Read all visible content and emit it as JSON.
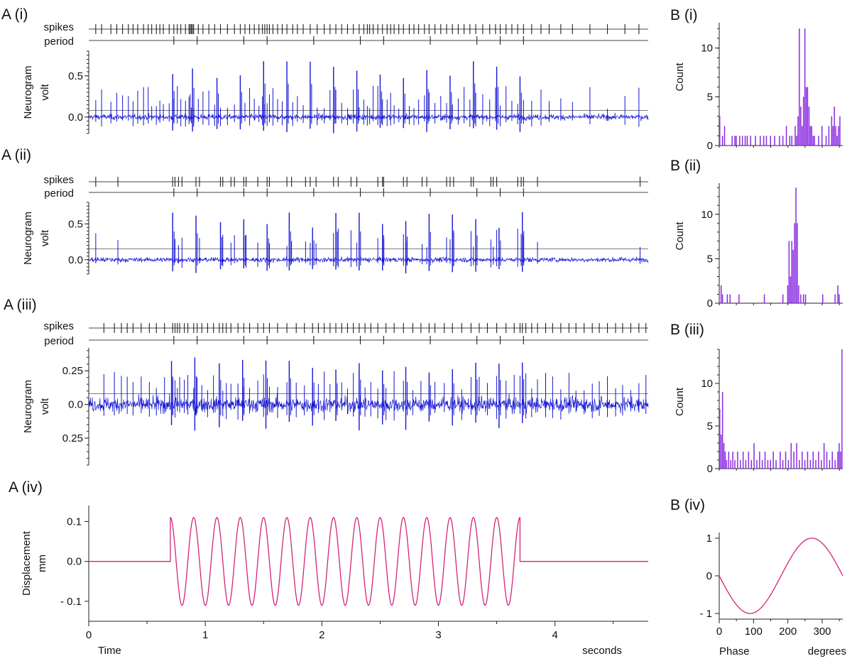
{
  "chart_data": [
    {
      "panel": "A (i)",
      "type": "line",
      "raster_labels": {
        "spikes": "spikes",
        "period": "period"
      },
      "ylabel": [
        "Neurogram",
        "volt"
      ],
      "yticks": [
        0.5,
        0.0
      ],
      "ytick_labels": [
        "0.5",
        "0.0"
      ],
      "ylim": [
        -0.2,
        0.8
      ],
      "xlim": [
        0,
        4.8
      ],
      "trace_color": "#1414d2",
      "threshold": 0.08,
      "spike_times": [
        0.06,
        0.11,
        0.19,
        0.24,
        0.29,
        0.34,
        0.38,
        0.42,
        0.47,
        0.51,
        0.54,
        0.58,
        0.61,
        0.64,
        0.69,
        0.73,
        0.76,
        0.79,
        0.83,
        0.86,
        0.87,
        0.88,
        0.89,
        0.9,
        0.94,
        0.98,
        1.03,
        1.08,
        1.13,
        1.19,
        1.25,
        1.3,
        1.34,
        1.38,
        1.42,
        1.46,
        1.49,
        1.51,
        1.53,
        1.55,
        1.58,
        1.62,
        1.66,
        1.7,
        1.75,
        1.79,
        1.84,
        1.9,
        1.96,
        2.02,
        2.07,
        2.12,
        2.17,
        2.22,
        2.27,
        2.32,
        2.36,
        2.39,
        2.41,
        2.44,
        2.48,
        2.52,
        2.56,
        2.59,
        2.62,
        2.66,
        2.7,
        2.75,
        2.79,
        2.83,
        2.88,
        2.92,
        2.97,
        3.02,
        3.07,
        3.12,
        3.17,
        3.22,
        3.27,
        3.32,
        3.38,
        3.44,
        3.49,
        3.53,
        3.58,
        3.63,
        3.68,
        3.73,
        3.8,
        3.88,
        3.95,
        4.05,
        4.15,
        4.3,
        4.45,
        4.6,
        4.72
      ],
      "burst_times": [
        0.72,
        0.89,
        1.1,
        1.3,
        1.5,
        1.7,
        1.9,
        2.1,
        2.3,
        2.5,
        2.7,
        2.9,
        3.1,
        3.3,
        3.5,
        3.7
      ],
      "period_marks": [
        0.73,
        0.93,
        1.33,
        1.53,
        1.93,
        2.33,
        2.53,
        2.93,
        3.33,
        3.53,
        3.73
      ]
    },
    {
      "panel": "A (ii)",
      "type": "line",
      "raster_labels": {
        "spikes": "spikes",
        "period": "period"
      },
      "ylabel": [
        "Neurogram",
        "volt"
      ],
      "yticks": [
        0.5,
        0.0
      ],
      "ytick_labels": [
        "0.5",
        "0.0"
      ],
      "ylim": [
        -0.2,
        0.8
      ],
      "xlim": [
        0,
        4.8
      ],
      "trace_color": "#1414d2",
      "threshold": 0.15,
      "spike_times": [
        0.06,
        0.25,
        0.72,
        0.74,
        0.77,
        0.8,
        0.92,
        0.95,
        1.13,
        1.15,
        1.22,
        1.25,
        1.33,
        1.35,
        1.45,
        1.53,
        1.55,
        1.7,
        1.74,
        1.86,
        1.9,
        1.95,
        2.1,
        2.14,
        2.25,
        2.3,
        2.48,
        2.52,
        2.53,
        2.7,
        2.73,
        2.86,
        2.9,
        3.07,
        3.1,
        3.13,
        3.28,
        3.3,
        3.45,
        3.47,
        3.5,
        3.68,
        3.71,
        3.73,
        3.85,
        4.73
      ],
      "burst_times": [
        0.72,
        0.92,
        1.13,
        1.33,
        1.53,
        1.72,
        1.92,
        2.12,
        2.32,
        2.52,
        2.72,
        2.92,
        3.12,
        3.32,
        3.52,
        3.72
      ],
      "period_marks": [
        0.73,
        0.93,
        1.33,
        1.53,
        1.93,
        2.33,
        2.53,
        2.93,
        3.33,
        3.53,
        3.73
      ]
    },
    {
      "panel": "A (iii)",
      "type": "line",
      "raster_labels": {
        "spikes": "spikes",
        "period": "period"
      },
      "ylabel": [
        "Neurogram",
        "volt"
      ],
      "yticks": [
        0.25,
        0.0,
        -0.25
      ],
      "ytick_labels": [
        "0.25",
        "0.0",
        "0.25"
      ],
      "ylim": [
        -0.45,
        0.42
      ],
      "xlim": [
        0,
        4.8
      ],
      "trace_color": "#1414d2",
      "threshold": 0.08,
      "spike_times": [
        0.13,
        0.22,
        0.28,
        0.33,
        0.38,
        0.45,
        0.52,
        0.58,
        0.65,
        0.72,
        0.74,
        0.76,
        0.78,
        0.82,
        0.85,
        0.9,
        0.93,
        0.97,
        1.02,
        1.07,
        1.12,
        1.15,
        1.18,
        1.22,
        1.28,
        1.33,
        1.38,
        1.45,
        1.5,
        1.55,
        1.62,
        1.7,
        1.78,
        1.85,
        1.92,
        1.97,
        2.02,
        2.07,
        2.12,
        2.17,
        2.22,
        2.27,
        2.32,
        2.37,
        2.42,
        2.48,
        2.55,
        2.62,
        2.7,
        2.78,
        2.85,
        2.92,
        2.97,
        3.05,
        3.12,
        3.2,
        3.28,
        3.35,
        3.42,
        3.5,
        3.58,
        3.65,
        3.7,
        3.72,
        3.75,
        3.8,
        3.85,
        3.92,
        3.98,
        4.05,
        4.12,
        4.18,
        4.25,
        4.32,
        4.38,
        4.45,
        4.52,
        4.58,
        4.65,
        4.72,
        4.78
      ],
      "burst_times": [
        0.71,
        0.91,
        1.12,
        1.32,
        1.52,
        1.72,
        1.92,
        2.12,
        2.32,
        2.52,
        2.72,
        2.92,
        3.12,
        3.32,
        3.52,
        3.72
      ],
      "period_marks": [
        0.73,
        0.93,
        1.33,
        1.53,
        1.93,
        2.33,
        2.53,
        2.93,
        3.33,
        3.53,
        3.73
      ]
    },
    {
      "panel": "A (iv)",
      "type": "line",
      "ylabel": [
        "Displacement",
        "mm"
      ],
      "yticks": [
        0.1,
        0.0,
        -0.1
      ],
      "ytick_labels": [
        "0.1",
        "0.0",
        "- 0.1"
      ],
      "ylim": [
        -0.15,
        0.14
      ],
      "xlim": [
        0,
        4.8
      ],
      "xticks": [
        0,
        1,
        2,
        3,
        4
      ],
      "xtick_labels": [
        "0",
        "1",
        "2",
        "3",
        "4"
      ],
      "xlabel": "Time",
      "xunit": "seconds",
      "trace_color": "#d4237a",
      "stimulus": {
        "start": 0.7,
        "end": 3.7,
        "frequency_hz": 5,
        "amplitude": 0.11
      }
    },
    {
      "panel": "B (i)",
      "type": "bar",
      "ylabel": "Count",
      "yticks": [
        0,
        5,
        10
      ],
      "ytick_labels": [
        "0",
        "5",
        "10"
      ],
      "ylim": [
        0,
        12.6
      ],
      "xlim": [
        0,
        360
      ],
      "bar_color": "#8a2be2",
      "bin_width": 4,
      "bins": [
        [
          0,
          3
        ],
        [
          8,
          1
        ],
        [
          14,
          2
        ],
        [
          36,
          1
        ],
        [
          44,
          1
        ],
        [
          48,
          1
        ],
        [
          58,
          1
        ],
        [
          66,
          1
        ],
        [
          74,
          1
        ],
        [
          80,
          1
        ],
        [
          90,
          1
        ],
        [
          104,
          1
        ],
        [
          118,
          1
        ],
        [
          128,
          1
        ],
        [
          136,
          1
        ],
        [
          148,
          1
        ],
        [
          160,
          1
        ],
        [
          174,
          1
        ],
        [
          184,
          1
        ],
        [
          194,
          2
        ],
        [
          204,
          1
        ],
        [
          210,
          1
        ],
        [
          220,
          2
        ],
        [
          224,
          1
        ],
        [
          228,
          3
        ],
        [
          232,
          12
        ],
        [
          236,
          4
        ],
        [
          240,
          2
        ],
        [
          244,
          5
        ],
        [
          248,
          12
        ],
        [
          252,
          6
        ],
        [
          256,
          6
        ],
        [
          260,
          4
        ],
        [
          264,
          2
        ],
        [
          268,
          2
        ],
        [
          272,
          1
        ],
        [
          276,
          1
        ],
        [
          288,
          1
        ],
        [
          298,
          2
        ],
        [
          310,
          1
        ],
        [
          318,
          2
        ],
        [
          326,
          3
        ],
        [
          330,
          2
        ],
        [
          334,
          4
        ],
        [
          338,
          2
        ],
        [
          342,
          1
        ],
        [
          346,
          2
        ],
        [
          350,
          3
        ]
      ]
    },
    {
      "panel": "B (ii)",
      "type": "bar",
      "ylabel": "Count",
      "yticks": [
        0,
        5,
        10
      ],
      "ytick_labels": [
        "0",
        "5",
        "10"
      ],
      "ylim": [
        0,
        13.5
      ],
      "xlim": [
        0,
        360
      ],
      "bar_color": "#8a2be2",
      "bin_width": 4,
      "bins": [
        [
          4,
          2
        ],
        [
          8,
          1
        ],
        [
          22,
          1
        ],
        [
          30,
          1
        ],
        [
          56,
          1
        ],
        [
          130,
          1
        ],
        [
          184,
          1
        ],
        [
          198,
          2
        ],
        [
          202,
          7
        ],
        [
          206,
          3
        ],
        [
          210,
          7
        ],
        [
          214,
          6
        ],
        [
          218,
          9
        ],
        [
          222,
          13
        ],
        [
          226,
          9
        ],
        [
          230,
          2
        ],
        [
          236,
          1
        ],
        [
          244,
          1
        ],
        [
          250,
          1
        ],
        [
          300,
          1
        ],
        [
          336,
          1
        ],
        [
          344,
          2
        ],
        [
          348,
          1
        ]
      ]
    },
    {
      "panel": "B (iii)",
      "type": "bar",
      "ylabel": "Count",
      "yticks": [
        0,
        5,
        10
      ],
      "ytick_labels": [
        "0",
        "5",
        "10"
      ],
      "ylim": [
        0,
        14
      ],
      "xlim": [
        0,
        360
      ],
      "bar_color": "#8a2be2",
      "bin_width": 4,
      "bins": [
        [
          0,
          7
        ],
        [
          4,
          4
        ],
        [
          8,
          9
        ],
        [
          12,
          3
        ],
        [
          16,
          2
        ],
        [
          20,
          1
        ],
        [
          26,
          2
        ],
        [
          32,
          1
        ],
        [
          38,
          2
        ],
        [
          44,
          1
        ],
        [
          52,
          2
        ],
        [
          60,
          1
        ],
        [
          68,
          2
        ],
        [
          76,
          1
        ],
        [
          84,
          2
        ],
        [
          92,
          1
        ],
        [
          100,
          3
        ],
        [
          108,
          1
        ],
        [
          116,
          2
        ],
        [
          124,
          1
        ],
        [
          132,
          2
        ],
        [
          140,
          1
        ],
        [
          148,
          1
        ],
        [
          156,
          2
        ],
        [
          164,
          1
        ],
        [
          176,
          2
        ],
        [
          184,
          1
        ],
        [
          192,
          2
        ],
        [
          200,
          1
        ],
        [
          208,
          3
        ],
        [
          216,
          2
        ],
        [
          224,
          3
        ],
        [
          232,
          1
        ],
        [
          240,
          2
        ],
        [
          248,
          1
        ],
        [
          256,
          2
        ],
        [
          264,
          1
        ],
        [
          272,
          2
        ],
        [
          280,
          1
        ],
        [
          288,
          2
        ],
        [
          296,
          1
        ],
        [
          304,
          3
        ],
        [
          312,
          2
        ],
        [
          320,
          1
        ],
        [
          328,
          2
        ],
        [
          336,
          1
        ],
        [
          344,
          2
        ],
        [
          348,
          3
        ],
        [
          352,
          2
        ],
        [
          356,
          14
        ]
      ]
    },
    {
      "panel": "B (iv)",
      "type": "line",
      "yticks": [
        1,
        0,
        -1
      ],
      "ytick_labels": [
        "1",
        "0",
        "- 1"
      ],
      "ylim": [
        -1.15,
        1.15
      ],
      "xlim": [
        0,
        360
      ],
      "xticks": [
        0,
        100,
        200,
        300
      ],
      "xtick_labels": [
        "0",
        "100",
        "200",
        "300"
      ],
      "xlabel": "Phase",
      "xunit": "degrees",
      "trace_color": "#d4237a",
      "function": "-sin(phase)"
    }
  ]
}
